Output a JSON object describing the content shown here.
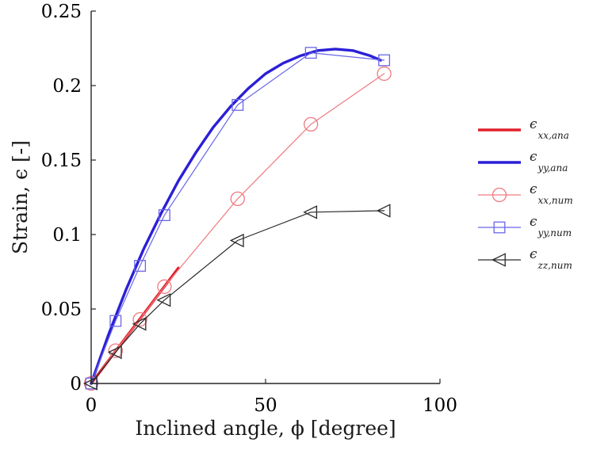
{
  "chart_data": {
    "type": "line",
    "xlabel": "Inclined angle, ϕ [degree]",
    "ylabel": "Strain, ϵ [-]",
    "xlim": [
      0,
      100
    ],
    "ylim": [
      0,
      0.25
    ],
    "x_ticks": [
      "0",
      "50",
      "100"
    ],
    "y_ticks": [
      "0",
      "0.05",
      "0.1",
      "0.15",
      "0.2",
      "0.25"
    ],
    "grid": false,
    "legend_position": "right",
    "series": [
      {
        "name": "ϵxx,ana",
        "legend_main": "ϵ",
        "legend_sub": "xx,ana",
        "style": "line",
        "color": "#e0202a",
        "marker": "none",
        "x": [
          0,
          5,
          10,
          15,
          20,
          25
        ],
        "y": [
          0,
          0.0155,
          0.031,
          0.0465,
          0.062,
          0.0775
        ]
      },
      {
        "name": "ϵyy,ana",
        "legend_main": "ϵ",
        "legend_sub": "yy,ana",
        "style": "line",
        "color": "#2b1fd6",
        "marker": "none",
        "x": [
          0,
          5,
          10,
          15,
          20,
          25,
          30,
          35,
          40,
          45,
          50,
          55,
          60,
          65,
          70,
          75,
          80,
          83
        ],
        "y": [
          0,
          0.033,
          0.063,
          0.09,
          0.114,
          0.136,
          0.155,
          0.172,
          0.186,
          0.198,
          0.208,
          0.215,
          0.22,
          0.2235,
          0.2245,
          0.2235,
          0.22,
          0.217
        ]
      },
      {
        "name": "ϵxx,num",
        "legend_main": "ϵ",
        "legend_sub": "xx,num",
        "style": "line-marker",
        "color": "#f07a80",
        "marker": "circle",
        "x": [
          0,
          7,
          14,
          21,
          42,
          63,
          84
        ],
        "y": [
          0,
          0.022,
          0.043,
          0.065,
          0.124,
          0.174,
          0.208
        ]
      },
      {
        "name": "ϵyy,num",
        "legend_main": "ϵ",
        "legend_sub": "yy,num",
        "style": "line-marker",
        "color": "#6a66e8",
        "marker": "square",
        "x": [
          0,
          7,
          14,
          21,
          42,
          63,
          84
        ],
        "y": [
          0,
          0.042,
          0.079,
          0.113,
          0.187,
          0.222,
          0.217
        ]
      },
      {
        "name": "ϵzz,num",
        "legend_main": "ϵ",
        "legend_sub": "zz,num",
        "style": "line-marker",
        "color": "#2a2a2a",
        "marker": "triangle-left",
        "x": [
          0,
          7,
          14,
          21,
          42,
          63,
          84
        ],
        "y": [
          0,
          0.021,
          0.04,
          0.056,
          0.096,
          0.115,
          0.116
        ]
      }
    ]
  }
}
